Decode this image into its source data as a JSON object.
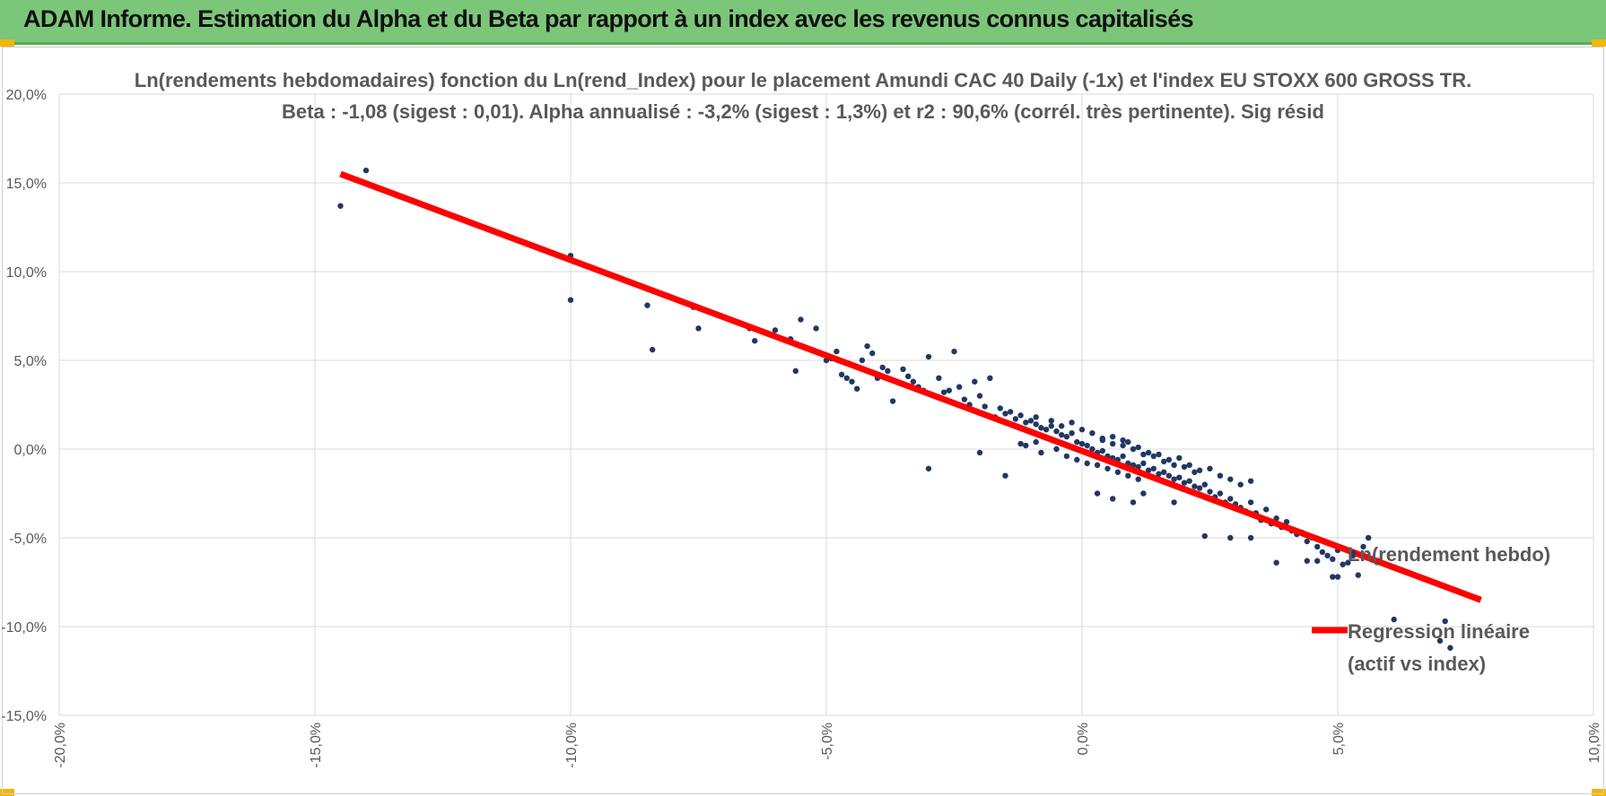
{
  "banner": {
    "title": "ADAM Informe. Estimation du Alpha et du Beta par rapport à un index avec les revenus connus capitalisés"
  },
  "colors": {
    "banner_bg": "#7cc67a",
    "points": "#1f3864",
    "regression": "#ff0000",
    "grid": "#d9d9d9",
    "text": "#595959"
  },
  "chart_data": {
    "type": "scatter",
    "title": "Ln(rendements hebdomadaires) fonction du Ln(rend_Index) pour le placement Amundi CAC 40 Daily (-1x) et l'index EU STOXX 600 GROSS TR.",
    "subtitle": "Beta : -1,08 (sigest : 0,01). Alpha annualisé : -3,2% (sigest : 1,3%) et r2 : 90,6% (corrél. très pertinente). Sig résid",
    "xlim": [
      -0.2,
      0.1
    ],
    "ylim": [
      -0.15,
      0.2
    ],
    "x_ticks": [
      -0.2,
      -0.15,
      -0.1,
      -0.05,
      0.0,
      0.05,
      0.1
    ],
    "y_ticks": [
      -0.15,
      -0.1,
      -0.05,
      0.0,
      0.05,
      0.1,
      0.15,
      0.2
    ],
    "x_tick_labels": [
      "-20,0%",
      "-15,0%",
      "-10,0%",
      "-5,0%",
      "0,0%",
      "5,0%",
      "10,0%"
    ],
    "y_tick_labels": [
      "-15,0%",
      "-10,0%",
      "-5,0%",
      "0,0%",
      "5,0%",
      "10,0%",
      "15,0%",
      "20,0%"
    ],
    "grid": true,
    "legend_position": "right",
    "series": [
      {
        "name": "Ln(rendement hebdo)",
        "kind": "points",
        "points": [
          [
            -0.145,
            0.137
          ],
          [
            -0.14,
            0.157
          ],
          [
            -0.1,
            0.109
          ],
          [
            -0.1,
            0.084
          ],
          [
            -0.085,
            0.081
          ],
          [
            -0.084,
            0.056
          ],
          [
            -0.076,
            0.08
          ],
          [
            -0.075,
            0.068
          ],
          [
            -0.065,
            0.068
          ],
          [
            -0.064,
            0.061
          ],
          [
            -0.06,
            0.067
          ],
          [
            -0.057,
            0.062
          ],
          [
            -0.056,
            0.044
          ],
          [
            -0.055,
            0.073
          ],
          [
            -0.054,
            0.057
          ],
          [
            -0.052,
            0.068
          ],
          [
            -0.05,
            0.05
          ],
          [
            -0.049,
            0.051
          ],
          [
            -0.048,
            0.055
          ],
          [
            -0.047,
            0.042
          ],
          [
            -0.046,
            0.04
          ],
          [
            -0.045,
            0.038
          ],
          [
            -0.044,
            0.034
          ],
          [
            -0.043,
            0.05
          ],
          [
            -0.042,
            0.058
          ],
          [
            -0.041,
            0.054
          ],
          [
            -0.04,
            0.04
          ],
          [
            -0.039,
            0.046
          ],
          [
            -0.038,
            0.044
          ],
          [
            -0.037,
            0.027
          ],
          [
            -0.035,
            0.045
          ],
          [
            -0.034,
            0.041
          ],
          [
            -0.033,
            0.038
          ],
          [
            -0.032,
            0.035
          ],
          [
            -0.031,
            0.033
          ],
          [
            -0.03,
            0.052
          ],
          [
            -0.029,
            0.03
          ],
          [
            -0.028,
            0.04
          ],
          [
            -0.027,
            0.032
          ],
          [
            -0.026,
            0.033
          ],
          [
            -0.025,
            0.055
          ],
          [
            -0.024,
            0.035
          ],
          [
            -0.023,
            0.028
          ],
          [
            -0.022,
            0.025
          ],
          [
            -0.021,
            0.038
          ],
          [
            -0.02,
            0.03
          ],
          [
            -0.019,
            0.024
          ],
          [
            -0.018,
            0.04
          ],
          [
            -0.03,
            -0.011
          ],
          [
            -0.02,
            -0.002
          ],
          [
            -0.015,
            -0.015
          ],
          [
            -0.012,
            0.003
          ],
          [
            -0.017,
            0.018
          ],
          [
            -0.016,
            0.023
          ],
          [
            -0.015,
            0.02
          ],
          [
            -0.014,
            0.021
          ],
          [
            -0.013,
            0.017
          ],
          [
            -0.012,
            0.019
          ],
          [
            -0.011,
            0.015
          ],
          [
            -0.01,
            0.016
          ],
          [
            -0.009,
            0.014
          ],
          [
            -0.008,
            0.012
          ],
          [
            -0.007,
            0.011
          ],
          [
            -0.006,
            0.013
          ],
          [
            -0.005,
            0.01
          ],
          [
            -0.004,
            0.008
          ],
          [
            -0.003,
            0.007
          ],
          [
            -0.002,
            0.009
          ],
          [
            -0.001,
            0.004
          ],
          [
            0.0,
            0.003
          ],
          [
            0.001,
            0.002
          ],
          [
            0.002,
            0.0
          ],
          [
            0.003,
            -0.002
          ],
          [
            0.004,
            -0.001
          ],
          [
            0.005,
            -0.004
          ],
          [
            0.006,
            -0.005
          ],
          [
            0.007,
            -0.006
          ],
          [
            0.008,
            -0.004
          ],
          [
            0.009,
            -0.008
          ],
          [
            0.01,
            -0.009
          ],
          [
            0.011,
            -0.01
          ],
          [
            0.012,
            -0.008
          ],
          [
            0.013,
            -0.012
          ],
          [
            0.014,
            -0.011
          ],
          [
            0.015,
            -0.014
          ],
          [
            0.016,
            -0.013
          ],
          [
            0.017,
            -0.015
          ],
          [
            0.018,
            -0.017
          ],
          [
            0.019,
            -0.016
          ],
          [
            0.02,
            -0.019
          ],
          [
            0.021,
            -0.018
          ],
          [
            0.022,
            -0.021
          ],
          [
            0.023,
            -0.022
          ],
          [
            0.024,
            -0.02
          ],
          [
            0.025,
            -0.024
          ],
          [
            0.026,
            -0.027
          ],
          [
            0.027,
            -0.025
          ],
          [
            0.028,
            -0.03
          ],
          [
            0.029,
            -0.028
          ],
          [
            0.03,
            -0.031
          ],
          [
            0.031,
            -0.033
          ],
          [
            0.032,
            -0.035
          ],
          [
            0.033,
            -0.03
          ],
          [
            0.034,
            -0.036
          ],
          [
            0.035,
            -0.04
          ],
          [
            0.036,
            -0.034
          ],
          [
            0.037,
            -0.042
          ],
          [
            0.038,
            -0.039
          ],
          [
            0.039,
            -0.044
          ],
          [
            0.04,
            -0.041
          ],
          [
            0.041,
            -0.046
          ],
          [
            0.042,
            -0.048
          ],
          [
            0.043,
            -0.047
          ],
          [
            0.044,
            -0.052
          ],
          [
            0.045,
            -0.05
          ],
          [
            0.046,
            -0.055
          ],
          [
            0.047,
            -0.058
          ],
          [
            0.048,
            -0.06
          ],
          [
            0.049,
            -0.062
          ],
          [
            0.05,
            -0.057
          ],
          [
            0.051,
            -0.065
          ],
          [
            0.052,
            -0.064
          ],
          [
            0.053,
            -0.06
          ],
          [
            0.055,
            -0.055
          ],
          [
            0.056,
            -0.05
          ],
          [
            0.058,
            -0.063
          ],
          [
            0.054,
            -0.071
          ],
          [
            0.05,
            -0.072
          ],
          [
            0.049,
            -0.072
          ],
          [
            0.046,
            -0.063
          ],
          [
            0.044,
            -0.063
          ],
          [
            0.038,
            -0.064
          ],
          [
            0.033,
            -0.05
          ],
          [
            0.029,
            -0.05
          ],
          [
            0.024,
            -0.049
          ],
          [
            0.018,
            -0.03
          ],
          [
            0.012,
            -0.025
          ],
          [
            0.01,
            -0.03
          ],
          [
            0.006,
            -0.028
          ],
          [
            0.003,
            -0.025
          ],
          [
            -0.005,
            0.0
          ],
          [
            -0.008,
            -0.002
          ],
          [
            -0.009,
            0.004
          ],
          [
            -0.011,
            0.002
          ],
          [
            0.004,
            0.005
          ],
          [
            0.006,
            0.007
          ],
          [
            0.008,
            0.002
          ],
          [
            0.009,
            0.004
          ],
          [
            0.011,
            0.001
          ],
          [
            0.013,
            -0.002
          ],
          [
            0.015,
            -0.003
          ],
          [
            0.017,
            -0.006
          ],
          [
            0.019,
            -0.005
          ],
          [
            0.021,
            -0.009
          ],
          [
            0.023,
            -0.012
          ],
          [
            0.025,
            -0.011
          ],
          [
            0.027,
            -0.015
          ],
          [
            0.029,
            -0.017
          ],
          [
            0.031,
            -0.02
          ],
          [
            0.033,
            -0.018
          ],
          [
            0.07,
            -0.108
          ],
          [
            0.072,
            -0.112
          ],
          [
            0.061,
            -0.096
          ],
          [
            0.071,
            -0.097
          ],
          [
            -0.009,
            0.018
          ],
          [
            -0.006,
            0.016
          ],
          [
            -0.004,
            0.013
          ],
          [
            -0.002,
            0.015
          ],
          [
            0.0,
            0.011
          ],
          [
            0.002,
            0.009
          ],
          [
            0.004,
            0.006
          ],
          [
            0.006,
            0.003
          ],
          [
            0.008,
            0.005
          ],
          [
            0.01,
            0.0
          ],
          [
            0.012,
            -0.003
          ],
          [
            0.014,
            -0.004
          ],
          [
            0.016,
            -0.007
          ],
          [
            0.018,
            -0.009
          ],
          [
            0.02,
            -0.01
          ],
          [
            0.022,
            -0.013
          ],
          [
            -0.003,
            -0.004
          ],
          [
            -0.001,
            -0.006
          ],
          [
            0.001,
            -0.008
          ],
          [
            0.003,
            -0.009
          ],
          [
            0.005,
            -0.011
          ],
          [
            0.007,
            -0.013
          ],
          [
            0.009,
            -0.015
          ],
          [
            0.011,
            -0.017
          ]
        ]
      },
      {
        "name": "Regression linéaire (actif vs index)",
        "legend_lines": [
          "Regression linéaire",
          "(actif vs index)"
        ],
        "kind": "line",
        "x": [
          -0.145,
          0.078
        ],
        "y": [
          0.155,
          -0.085
        ]
      }
    ]
  }
}
